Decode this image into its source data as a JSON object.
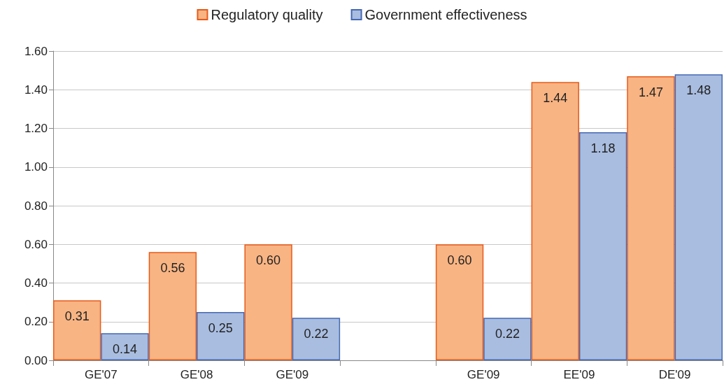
{
  "chart_data": {
    "type": "bar",
    "categories": [
      "GE'07",
      "GE'08",
      "GE'09",
      null,
      "GE'09",
      "EE'09",
      "DE'09"
    ],
    "series": [
      {
        "name": "Regulatory quality",
        "color": "#f8b483",
        "values": [
          0.31,
          0.56,
          0.6,
          null,
          0.6,
          1.44,
          1.47
        ],
        "value_labels": [
          "0.31",
          "0.56",
          "0.60",
          null,
          "0.60",
          "1.44",
          "1.47"
        ]
      },
      {
        "name": "Government effectiveness",
        "color": "#a9bde0",
        "values": [
          0.14,
          0.25,
          0.22,
          null,
          0.22,
          1.18,
          1.48
        ],
        "value_labels": [
          "0.14",
          "0.25",
          "0.22",
          null,
          "0.22",
          "1.18",
          "1.48"
        ]
      }
    ],
    "ylim": [
      0,
      1.6
    ],
    "yticks": [
      {
        "value": 0,
        "label": "0.00"
      },
      {
        "value": 0.2,
        "label": "0.20"
      },
      {
        "value": 0.4,
        "label": "0.40"
      },
      {
        "value": 0.6,
        "label": "0.60"
      },
      {
        "value": 0.8,
        "label": "0.80"
      },
      {
        "value": 1.0,
        "label": "1.00"
      },
      {
        "value": 1.2,
        "label": "1.20"
      },
      {
        "value": 1.4,
        "label": "1.40"
      },
      {
        "value": 1.6,
        "label": "1.60"
      }
    ],
    "grid": "y",
    "legend": "top"
  }
}
